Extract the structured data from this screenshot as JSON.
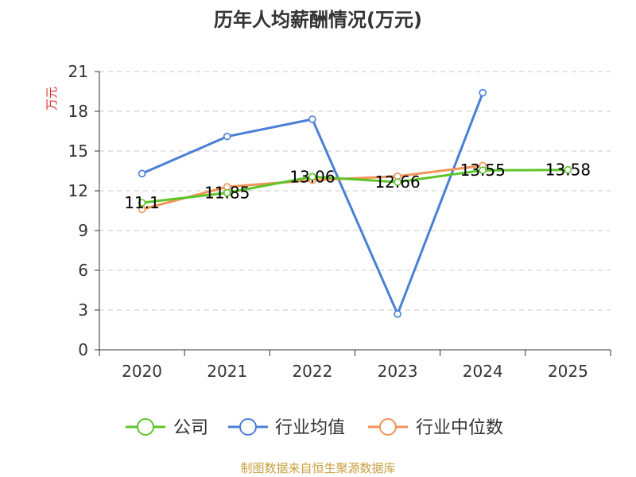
{
  "chart_data": {
    "type": "line",
    "title": "历年人均薪酬情况(万元)",
    "ylabel": "万元",
    "categories": [
      "2020",
      "2021",
      "2022",
      "2023",
      "2024",
      "2025"
    ],
    "yticks": [
      "0",
      "3",
      "6",
      "9",
      "12",
      "15",
      "18",
      "21"
    ],
    "ylim": [
      0,
      21
    ],
    "grid": true,
    "legend_position": "bottom",
    "series": [
      {
        "name": "公司",
        "color": "#5ec42a",
        "values": [
          11.1,
          11.85,
          13.06,
          12.66,
          13.55,
          13.58
        ],
        "labels": [
          "11.1",
          "11.85",
          "13.06",
          "12.66",
          "13.55",
          "13.58"
        ]
      },
      {
        "name": "行业均值",
        "color": "#4a7fd6",
        "values": [
          13.3,
          16.1,
          17.4,
          2.7,
          19.4,
          null
        ]
      },
      {
        "name": "行业中位数",
        "color": "#f0945a",
        "values": [
          10.6,
          12.3,
          12.8,
          13.1,
          13.9,
          null
        ]
      }
    ]
  },
  "footer": {
    "source": "制图数据来自恒生聚源数据库"
  }
}
